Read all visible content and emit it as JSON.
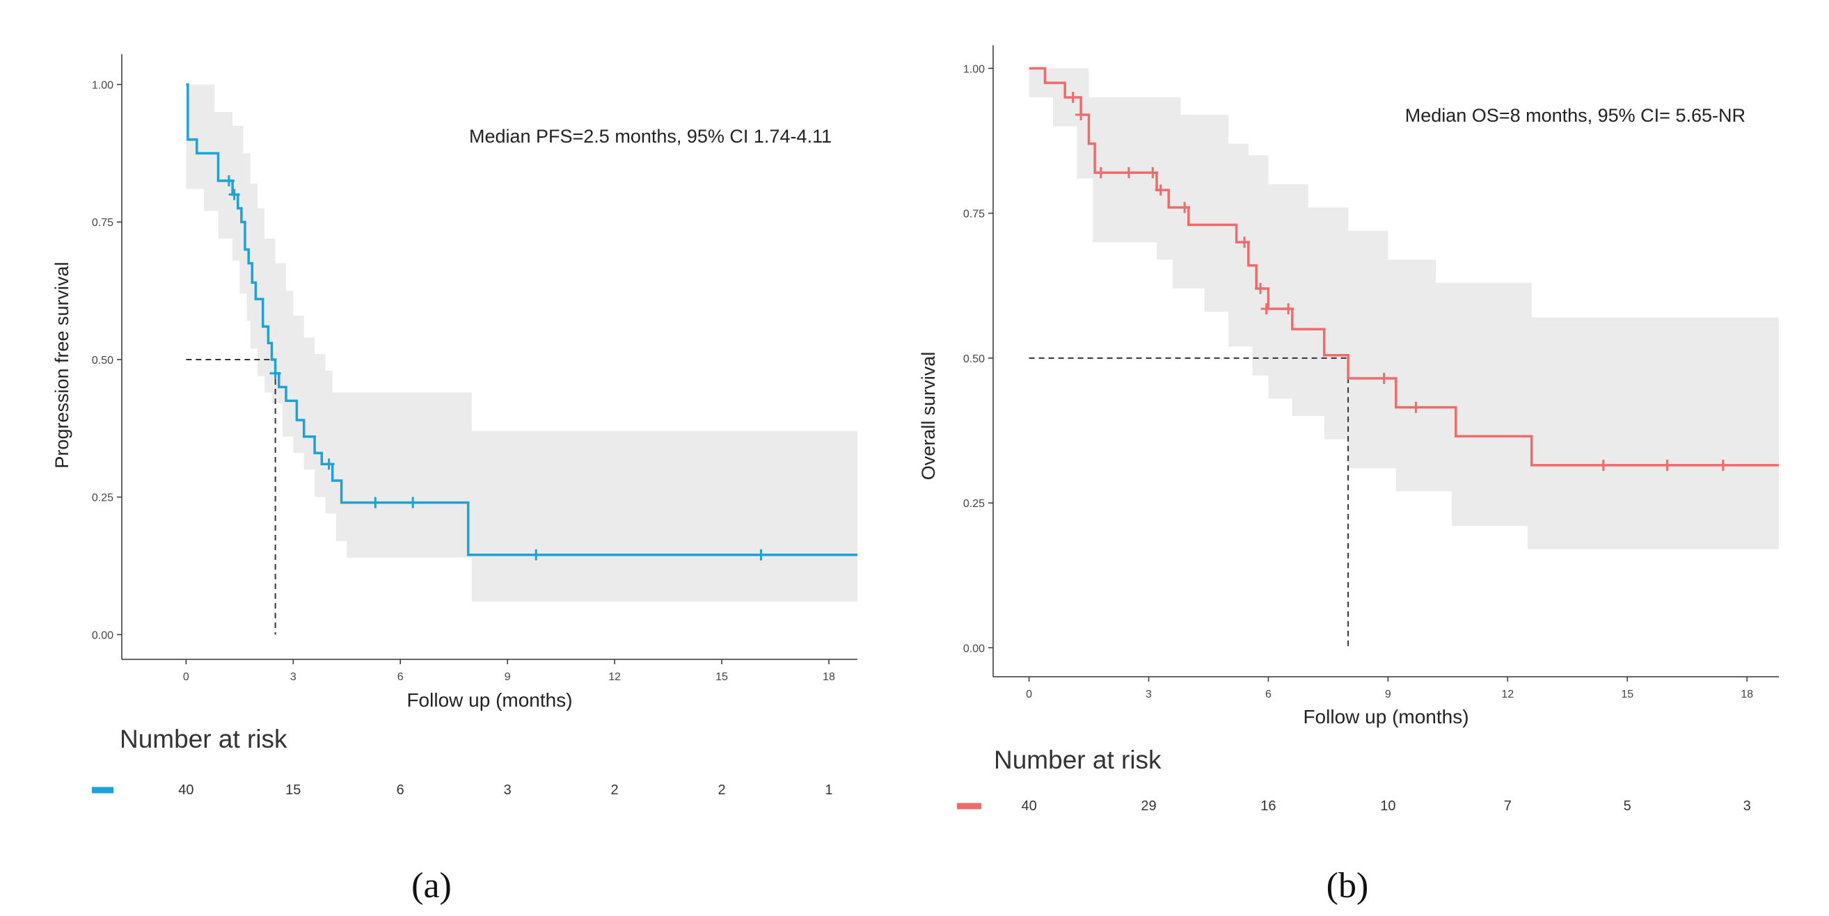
{
  "chart_data": [
    {
      "type": "line",
      "panel_label": "(a)",
      "color": "#1aa3d9",
      "band_color": "#ebebeb",
      "ylabel": "Progression free survival",
      "xlabel": "Follow up (months)",
      "annotation": "Median PFS=2.5 months, 95% CI 1.74-4.11",
      "median": 2.5,
      "xlim": [
        -1.8,
        18.8
      ],
      "ylim": [
        -0.045,
        1.055
      ],
      "x_ticks": [
        0,
        3,
        6,
        9,
        12,
        15,
        18
      ],
      "x_tick_labels": [
        "0",
        "3",
        "6",
        "9",
        "12",
        "15",
        "18"
      ],
      "y_ticks": [
        0,
        0.25,
        0.5,
        0.75,
        1.0
      ],
      "y_tick_labels": [
        "0.00",
        "0.25",
        "0.50",
        "0.75",
        "1.00"
      ],
      "grid": false,
      "series": [
        {
          "steps": [
            [
              0,
              1.0
            ],
            [
              0.05,
              0.9
            ],
            [
              0.3,
              0.875
            ],
            [
              0.9,
              0.825
            ],
            [
              1.3,
              0.8
            ],
            [
              1.45,
              0.775
            ],
            [
              1.55,
              0.75
            ],
            [
              1.65,
              0.7
            ],
            [
              1.75,
              0.675
            ],
            [
              1.85,
              0.64
            ],
            [
              1.95,
              0.61
            ],
            [
              2.15,
              0.56
            ],
            [
              2.3,
              0.53
            ],
            [
              2.4,
              0.5
            ],
            [
              2.5,
              0.475
            ],
            [
              2.6,
              0.45
            ],
            [
              2.8,
              0.425
            ],
            [
              3.1,
              0.39
            ],
            [
              3.3,
              0.36
            ],
            [
              3.6,
              0.33
            ],
            [
              3.8,
              0.31
            ],
            [
              4.1,
              0.28
            ],
            [
              4.35,
              0.24
            ],
            [
              7.9,
              0.145
            ],
            [
              18.8,
              0.145
            ]
          ],
          "censored": [
            [
              1.2,
              0.825
            ],
            [
              1.35,
              0.8
            ],
            [
              2.5,
              0.475
            ],
            [
              4.0,
              0.31
            ],
            [
              5.3,
              0.24
            ],
            [
              6.35,
              0.24
            ],
            [
              9.8,
              0.145
            ],
            [
              16.1,
              0.145
            ]
          ],
          "ci_upper": [
            [
              0,
              1.0
            ],
            [
              0.8,
              0.95
            ],
            [
              1.3,
              0.925
            ],
            [
              1.6,
              0.875
            ],
            [
              1.8,
              0.82
            ],
            [
              2.0,
              0.775
            ],
            [
              2.2,
              0.72
            ],
            [
              2.5,
              0.675
            ],
            [
              2.8,
              0.625
            ],
            [
              3.0,
              0.58
            ],
            [
              3.3,
              0.54
            ],
            [
              3.6,
              0.51
            ],
            [
              3.9,
              0.48
            ],
            [
              4.1,
              0.44
            ],
            [
              4.4,
              0.44
            ],
            [
              8.0,
              0.37
            ],
            [
              18.8,
              0.37
            ]
          ],
          "ci_lower": [
            [
              0,
              0.81
            ],
            [
              0.5,
              0.77
            ],
            [
              0.9,
              0.72
            ],
            [
              1.3,
              0.68
            ],
            [
              1.5,
              0.62
            ],
            [
              1.7,
              0.57
            ],
            [
              1.8,
              0.52
            ],
            [
              2.0,
              0.47
            ],
            [
              2.2,
              0.44
            ],
            [
              2.4,
              0.42
            ],
            [
              2.7,
              0.36
            ],
            [
              3.0,
              0.33
            ],
            [
              3.3,
              0.3
            ],
            [
              3.6,
              0.25
            ],
            [
              3.9,
              0.22
            ],
            [
              4.2,
              0.17
            ],
            [
              4.5,
              0.14
            ],
            [
              7.9,
              0.14
            ],
            [
              8.0,
              0.06
            ],
            [
              18.8,
              0.06
            ]
          ]
        }
      ],
      "risk_table": {
        "title": "Number at risk",
        "values": [
          "40",
          "15",
          "6",
          "3",
          "2",
          "2",
          "1"
        ]
      }
    },
    {
      "type": "line",
      "panel_label": "(b)",
      "color": "#ef6b6b",
      "band_color": "#ebebeb",
      "ylabel": "Overall survival",
      "xlabel": "Follow up (months)",
      "annotation": "Median OS=8 months, 95% CI= 5.65-NR",
      "median": 8.0,
      "xlim": [
        -0.9,
        18.8
      ],
      "ylim": [
        -0.05,
        1.04
      ],
      "x_ticks": [
        0,
        3,
        6,
        9,
        12,
        15,
        18
      ],
      "x_tick_labels": [
        "0",
        "3",
        "6",
        "9",
        "12",
        "15",
        "18"
      ],
      "y_ticks": [
        0,
        0.25,
        0.5,
        0.75,
        1.0
      ],
      "y_tick_labels": [
        "0.00",
        "0.25",
        "0.50",
        "0.75",
        "1.00"
      ],
      "grid": false,
      "series": [
        {
          "steps": [
            [
              0,
              1.0
            ],
            [
              0.4,
              0.975
            ],
            [
              0.9,
              0.95
            ],
            [
              1.3,
              0.92
            ],
            [
              1.5,
              0.87
            ],
            [
              1.65,
              0.82
            ],
            [
              3.2,
              0.79
            ],
            [
              3.5,
              0.76
            ],
            [
              4.0,
              0.73
            ],
            [
              5.2,
              0.7
            ],
            [
              5.5,
              0.66
            ],
            [
              5.7,
              0.62
            ],
            [
              6.0,
              0.585
            ],
            [
              6.6,
              0.55
            ],
            [
              7.4,
              0.505
            ],
            [
              8.0,
              0.465
            ],
            [
              9.2,
              0.415
            ],
            [
              10.7,
              0.365
            ],
            [
              12.6,
              0.315
            ],
            [
              18.8,
              0.315
            ]
          ],
          "censored": [
            [
              1.1,
              0.95
            ],
            [
              1.3,
              0.92
            ],
            [
              1.8,
              0.82
            ],
            [
              2.5,
              0.82
            ],
            [
              3.1,
              0.82
            ],
            [
              3.3,
              0.79
            ],
            [
              3.9,
              0.76
            ],
            [
              5.4,
              0.7
            ],
            [
              5.8,
              0.62
            ],
            [
              5.95,
              0.585
            ],
            [
              6.5,
              0.585
            ],
            [
              8.9,
              0.465
            ],
            [
              9.7,
              0.415
            ],
            [
              14.4,
              0.315
            ],
            [
              16.0,
              0.315
            ],
            [
              17.4,
              0.315
            ]
          ],
          "ci_upper": [
            [
              0,
              1.0
            ],
            [
              1.0,
              1.0
            ],
            [
              1.5,
              0.95
            ],
            [
              3.0,
              0.95
            ],
            [
              3.8,
              0.92
            ],
            [
              5.0,
              0.87
            ],
            [
              5.5,
              0.85
            ],
            [
              6.0,
              0.8
            ],
            [
              7.0,
              0.76
            ],
            [
              8.0,
              0.72
            ],
            [
              9.0,
              0.67
            ],
            [
              10.2,
              0.63
            ],
            [
              11.0,
              0.63
            ],
            [
              12.6,
              0.57
            ],
            [
              18.8,
              0.57
            ]
          ],
          "ci_lower": [
            [
              0,
              0.95
            ],
            [
              0.6,
              0.9
            ],
            [
              1.2,
              0.81
            ],
            [
              1.6,
              0.7
            ],
            [
              3.2,
              0.67
            ],
            [
              3.6,
              0.62
            ],
            [
              4.4,
              0.58
            ],
            [
              5.0,
              0.52
            ],
            [
              5.6,
              0.47
            ],
            [
              6.0,
              0.43
            ],
            [
              6.6,
              0.4
            ],
            [
              7.4,
              0.36
            ],
            [
              8.0,
              0.31
            ],
            [
              9.2,
              0.27
            ],
            [
              10.6,
              0.21
            ],
            [
              12.5,
              0.17
            ],
            [
              18.8,
              0.17
            ]
          ]
        }
      ],
      "risk_table": {
        "title": "Number at risk",
        "values": [
          "40",
          "29",
          "16",
          "10",
          "7",
          "5",
          "3"
        ]
      }
    }
  ]
}
